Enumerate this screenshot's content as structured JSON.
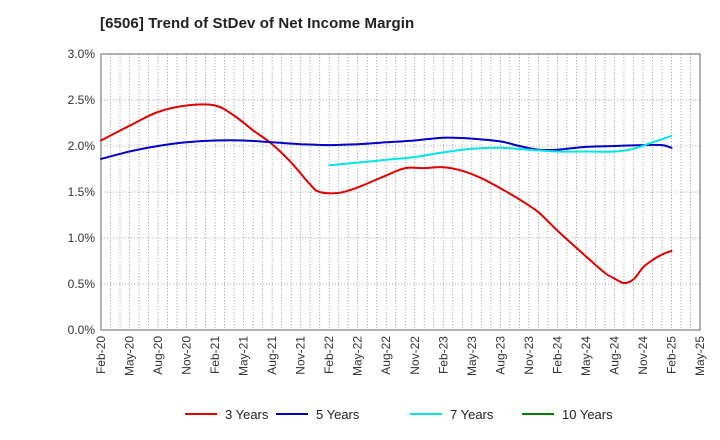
{
  "title": "[6506]  Trend of StDev of Net Income Margin",
  "chart_data": {
    "type": "line",
    "title": "[6506]  Trend of StDev of Net Income Margin",
    "xlabel": "",
    "ylabel": "",
    "ylim": [
      0,
      3.0
    ],
    "x_ticks": [
      "Feb-20",
      "May-20",
      "Aug-20",
      "Nov-20",
      "Feb-21",
      "May-21",
      "Aug-21",
      "Nov-21",
      "Feb-22",
      "May-22",
      "Aug-22",
      "Nov-22",
      "Feb-23",
      "May-23",
      "Aug-23",
      "Nov-23",
      "Feb-24",
      "May-24",
      "Aug-24",
      "Nov-24",
      "Feb-25",
      "May-25"
    ],
    "y_ticks": [
      "0.0%",
      "0.5%",
      "1.0%",
      "1.5%",
      "2.0%",
      "2.5%",
      "3.0%"
    ],
    "grid": true,
    "legend_position": "bottom",
    "series": [
      {
        "name": "3 Years",
        "color": "#e00000",
        "points": [
          [
            "Feb-20",
            2.06
          ],
          [
            "May-20",
            2.22
          ],
          [
            "Aug-20",
            2.37
          ],
          [
            "Nov-20",
            2.44
          ],
          [
            "Feb-21",
            2.44
          ],
          [
            "Apr-21",
            2.33
          ],
          [
            "Jun-21",
            2.17
          ],
          [
            "Aug-21",
            2.02
          ],
          [
            "Oct-21",
            1.82
          ],
          [
            "Dec-21",
            1.58
          ],
          [
            "Jan-22",
            1.5
          ],
          [
            "Mar-22",
            1.49
          ],
          [
            "May-22",
            1.55
          ],
          [
            "Aug-22",
            1.68
          ],
          [
            "Oct-22",
            1.76
          ],
          [
            "Dec-22",
            1.76
          ],
          [
            "Feb-23",
            1.77
          ],
          [
            "Apr-23",
            1.73
          ],
          [
            "Jun-23",
            1.65
          ],
          [
            "Aug-23",
            1.54
          ],
          [
            "Oct-23",
            1.42
          ],
          [
            "Dec-23",
            1.28
          ],
          [
            "Feb-24",
            1.08
          ],
          [
            "May-24",
            0.8
          ],
          [
            "Jul-24",
            0.62
          ],
          [
            "Aug-24",
            0.56
          ],
          [
            "Sep-24",
            0.51
          ],
          [
            "Oct-24",
            0.55
          ],
          [
            "Nov-24",
            0.68
          ],
          [
            "Dec-24",
            0.76
          ],
          [
            "Jan-25",
            0.82
          ],
          [
            "Feb-25",
            0.86
          ]
        ]
      },
      {
        "name": "5 Years",
        "color": "#0000c8",
        "points": [
          [
            "Feb-20",
            1.86
          ],
          [
            "May-20",
            1.94
          ],
          [
            "Aug-20",
            2.0
          ],
          [
            "Nov-20",
            2.04
          ],
          [
            "Feb-21",
            2.06
          ],
          [
            "May-21",
            2.06
          ],
          [
            "Aug-21",
            2.04
          ],
          [
            "Nov-21",
            2.02
          ],
          [
            "Feb-22",
            2.01
          ],
          [
            "May-22",
            2.02
          ],
          [
            "Aug-22",
            2.04
          ],
          [
            "Nov-22",
            2.06
          ],
          [
            "Feb-23",
            2.09
          ],
          [
            "May-23",
            2.08
          ],
          [
            "Aug-23",
            2.05
          ],
          [
            "Oct-23",
            2.0
          ],
          [
            "Dec-23",
            1.96
          ],
          [
            "Feb-24",
            1.96
          ],
          [
            "May-24",
            1.99
          ],
          [
            "Aug-24",
            2.0
          ],
          [
            "Nov-24",
            2.01
          ],
          [
            "Jan-25",
            2.01
          ],
          [
            "Feb-25",
            1.98
          ]
        ]
      },
      {
        "name": "7 Years",
        "color": "#00e6e6",
        "points": [
          [
            "Feb-22",
            1.79
          ],
          [
            "May-22",
            1.82
          ],
          [
            "Aug-22",
            1.85
          ],
          [
            "Nov-22",
            1.88
          ],
          [
            "Feb-23",
            1.93
          ],
          [
            "May-23",
            1.97
          ],
          [
            "Aug-23",
            1.98
          ],
          [
            "Nov-23",
            1.96
          ],
          [
            "Feb-24",
            1.94
          ],
          [
            "May-24",
            1.94
          ],
          [
            "Aug-24",
            1.94
          ],
          [
            "Oct-24",
            1.97
          ],
          [
            "Dec-24",
            2.04
          ],
          [
            "Feb-25",
            2.11
          ]
        ]
      },
      {
        "name": "10 Years",
        "color": "#008000",
        "points": []
      }
    ]
  }
}
